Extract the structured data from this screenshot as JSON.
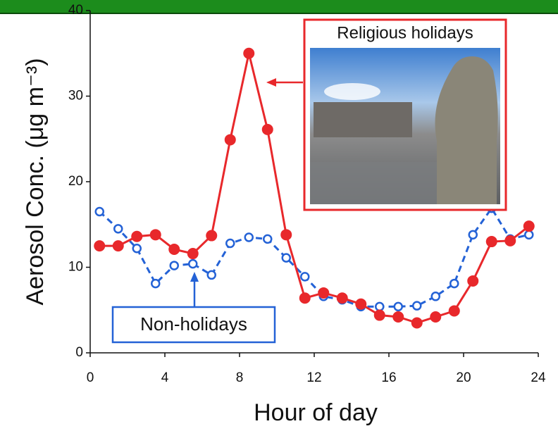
{
  "chart_data": {
    "type": "line",
    "xlabel": "Hour of day",
    "ylabel": "Aerosol Conc. (μg m⁻³)",
    "x": [
      0.5,
      1.5,
      2.5,
      3.5,
      4.5,
      5.5,
      6.5,
      7.5,
      8.5,
      9.5,
      10.5,
      11.5,
      12.5,
      13.5,
      14.5,
      15.5,
      16.5,
      17.5,
      18.5,
      19.5,
      20.5,
      21.5,
      22.5,
      23.5
    ],
    "series": [
      {
        "name": "Religious holidays",
        "color": "#e8282b",
        "dashed": false,
        "marker": "filled",
        "values": [
          12.5,
          12.5,
          13.6,
          13.8,
          12.1,
          11.6,
          13.7,
          24.9,
          35.0,
          26.1,
          13.8,
          6.4,
          7.0,
          6.4,
          5.7,
          4.4,
          4.2,
          3.5,
          4.2,
          4.9,
          8.4,
          13.0,
          13.1,
          14.8
        ]
      },
      {
        "name": "Non-holidays",
        "color": "#2462d6",
        "dashed": true,
        "marker": "open",
        "values": [
          16.5,
          14.5,
          12.2,
          8.1,
          10.2,
          10.4,
          9.1,
          12.8,
          13.5,
          13.3,
          11.1,
          8.9,
          6.6,
          6.2,
          5.4,
          5.4,
          5.4,
          5.5,
          6.6,
          8.1,
          13.8,
          16.9,
          13.3,
          13.8
        ]
      }
    ],
    "xlim": [
      0,
      24
    ],
    "xticks": [
      0,
      4,
      8,
      12,
      16,
      20,
      24
    ],
    "ylim": [
      0,
      40
    ],
    "yticks": [
      0,
      10,
      20,
      30,
      40
    ],
    "grid": false
  }
}
